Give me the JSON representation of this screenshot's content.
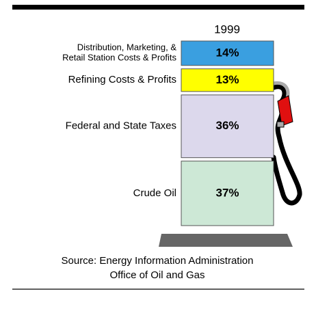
{
  "chart_data": {
    "type": "stacked-bar",
    "categories": [
      "Distribution, Marketing, &\nRetail Station Costs & Profits",
      "Refining Costs & Profits",
      "Federal and State Taxes",
      "Crude Oil"
    ],
    "series": [
      {
        "name": "1999",
        "values": [
          14,
          13,
          36,
          37
        ],
        "value_labels": [
          "14%",
          "13%",
          "36%",
          "37%"
        ]
      }
    ],
    "colors": [
      "#3a9fe0",
      "#ffff00",
      "#dcd8ec",
      "#cde8d6"
    ],
    "source": [
      "Source: Energy Information Administration",
      "Office of Oil and Gas"
    ]
  }
}
